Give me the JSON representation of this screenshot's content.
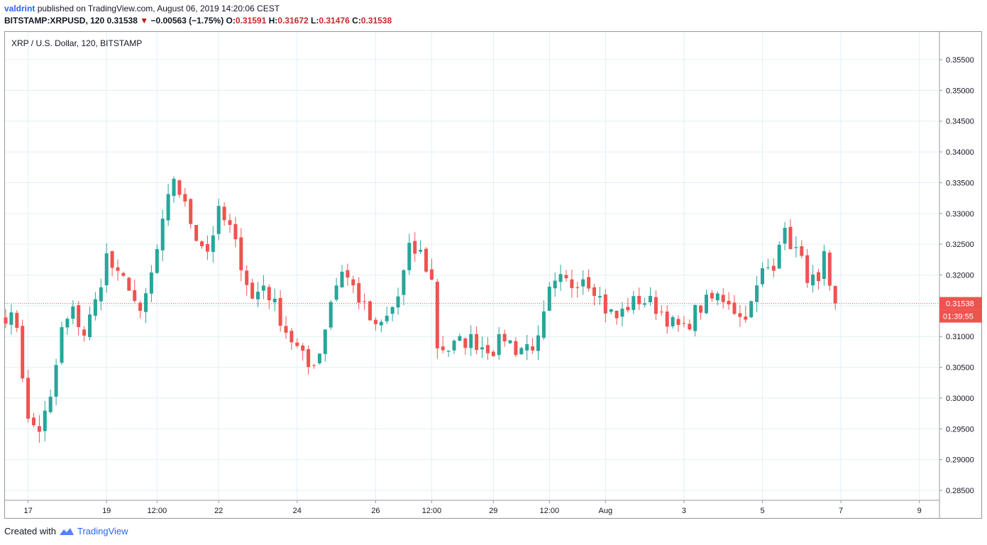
{
  "header": {
    "author": "valdrint",
    "published_text": "published on TradingView.com, August 06, 2019 14:20:06 CEST",
    "symbol": "BITSTAMP:XRPUSD, 120",
    "last": "0.31538",
    "change": "−0.00563 (−1.75%)",
    "open_label": "O:",
    "open": "0.31591",
    "high_label": "H:",
    "high": "0.31672",
    "low_label": "L:",
    "low": "0.31476",
    "close_label": "C:",
    "close": "0.31538"
  },
  "legend_title": "XRP / U.S. Dollar, 120, BITSTAMP",
  "footer": {
    "created_with": "Created with",
    "brand": "TradingView"
  },
  "colors": {
    "up": "#26a69a",
    "down": "#ef5350",
    "grid": "#e0f0f5",
    "price_line": "#ef5350",
    "label_bg": "#ef5350"
  },
  "chart_data": {
    "type": "candlestick",
    "title": "XRP / U.S. Dollar, 120, BITSTAMP",
    "ylim": [
      0.2835,
      0.3595
    ],
    "y_ticks": [
      "0.35500",
      "0.35000",
      "0.34500",
      "0.34000",
      "0.33500",
      "0.33000",
      "0.32500",
      "0.32000",
      "0.31500",
      "0.31000",
      "0.30500",
      "0.30000",
      "0.29500",
      "0.29000",
      "0.28500"
    ],
    "x_ticks": [
      "17",
      "19",
      "12:00",
      "22",
      "24",
      "26",
      "12:00",
      "29",
      "12:00",
      "Aug",
      "3",
      "5",
      "7",
      "9"
    ],
    "x_tick_index": [
      4,
      18,
      27,
      38,
      52,
      66,
      76,
      87,
      97,
      107,
      121,
      135,
      149,
      163
    ],
    "last_price_label": "0.31538",
    "countdown_label": "01:39:55",
    "last_price": 0.31538,
    "anchors": [
      [
        0,
        0.3135
      ],
      [
        2,
        0.312
      ],
      [
        4,
        0.296
      ],
      [
        6,
        0.295
      ],
      [
        8,
        0.2995
      ],
      [
        10,
        0.311
      ],
      [
        12,
        0.314
      ],
      [
        14,
        0.3105
      ],
      [
        16,
        0.3155
      ],
      [
        18,
        0.323
      ],
      [
        20,
        0.3195
      ],
      [
        22,
        0.3185
      ],
      [
        24,
        0.313
      ],
      [
        26,
        0.32
      ],
      [
        28,
        0.328
      ],
      [
        30,
        0.336
      ],
      [
        32,
        0.331
      ],
      [
        34,
        0.3265
      ],
      [
        36,
        0.324
      ],
      [
        38,
        0.33
      ],
      [
        40,
        0.3275
      ],
      [
        42,
        0.322
      ],
      [
        44,
        0.316
      ],
      [
        46,
        0.3185
      ],
      [
        48,
        0.315
      ],
      [
        50,
        0.311
      ],
      [
        52,
        0.308
      ],
      [
        54,
        0.305
      ],
      [
        56,
        0.3075
      ],
      [
        58,
        0.316
      ],
      [
        60,
        0.321
      ],
      [
        62,
        0.318
      ],
      [
        64,
        0.3145
      ],
      [
        66,
        0.311
      ],
      [
        68,
        0.313
      ],
      [
        70,
        0.3165
      ],
      [
        72,
        0.324
      ],
      [
        74,
        0.3235
      ],
      [
        76,
        0.319
      ],
      [
        77,
        0.3085
      ],
      [
        79,
        0.308
      ],
      [
        81,
        0.309
      ],
      [
        83,
        0.3095
      ],
      [
        85,
        0.3085
      ],
      [
        87,
        0.308
      ],
      [
        89,
        0.31
      ],
      [
        91,
        0.308
      ],
      [
        93,
        0.3085
      ],
      [
        95,
        0.309
      ],
      [
        97,
        0.317
      ],
      [
        99,
        0.319
      ],
      [
        101,
        0.3185
      ],
      [
        103,
        0.32
      ],
      [
        105,
        0.318
      ],
      [
        107,
        0.3145
      ],
      [
        109,
        0.313
      ],
      [
        111,
        0.315
      ],
      [
        113,
        0.316
      ],
      [
        115,
        0.3155
      ],
      [
        117,
        0.314
      ],
      [
        119,
        0.312
      ],
      [
        121,
        0.311
      ],
      [
        123,
        0.314
      ],
      [
        125,
        0.3155
      ],
      [
        127,
        0.3165
      ],
      [
        129,
        0.316
      ],
      [
        131,
        0.313
      ],
      [
        133,
        0.315
      ],
      [
        135,
        0.3205
      ],
      [
        137,
        0.322
      ],
      [
        138,
        0.326
      ],
      [
        139,
        0.3265
      ],
      [
        141,
        0.324
      ],
      [
        143,
        0.32
      ],
      [
        145,
        0.318
      ],
      [
        146,
        0.3225
      ],
      [
        147,
        0.317
      ],
      [
        148,
        0.3154
      ]
    ],
    "candle_count": 149
  }
}
